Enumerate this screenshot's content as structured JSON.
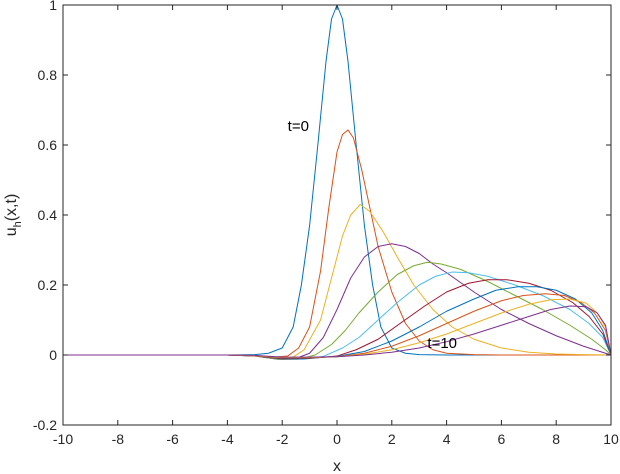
{
  "chart_data": {
    "type": "line",
    "xlabel": "x",
    "ylabel_base": "u",
    "ylabel_sub": "h",
    "ylabel_suffix": "(x,t)",
    "xlim": [
      -10,
      10
    ],
    "ylim": [
      -0.2,
      1
    ],
    "xticks": [
      -10,
      -8,
      -6,
      -4,
      -2,
      0,
      2,
      4,
      6,
      8,
      10
    ],
    "yticks": [
      -0.2,
      0,
      0.2,
      0.4,
      0.6,
      0.8,
      1
    ],
    "ytick_labels": [
      "-0.2",
      "0",
      "0.2",
      "0.4",
      "0.6",
      "0.8",
      "1"
    ],
    "grid": false,
    "box": true,
    "annotations": [
      {
        "text": "t=0",
        "x": -1.8,
        "y": 0.64
      },
      {
        "text": "t=10",
        "x": 3.3,
        "y": 0.02
      }
    ],
    "series": [
      {
        "color": "#0072BD",
        "points": [
          [
            -10,
            0
          ],
          [
            -4,
            0
          ],
          [
            -3,
            0.001
          ],
          [
            -2.5,
            0.005
          ],
          [
            -2,
            0.02
          ],
          [
            -1.6,
            0.08
          ],
          [
            -1.3,
            0.2
          ],
          [
            -1,
            0.37
          ],
          [
            -0.7,
            0.6
          ],
          [
            -0.4,
            0.84
          ],
          [
            -0.2,
            0.96
          ],
          [
            0,
            1
          ],
          [
            0.2,
            0.96
          ],
          [
            0.4,
            0.84
          ],
          [
            0.7,
            0.6
          ],
          [
            1,
            0.37
          ],
          [
            1.3,
            0.2
          ],
          [
            1.6,
            0.08
          ],
          [
            2,
            0.02
          ],
          [
            2.5,
            0.005
          ],
          [
            3,
            0.001
          ],
          [
            4,
            0
          ],
          [
            10,
            0
          ]
        ]
      },
      {
        "color": "#D95319",
        "points": [
          [
            -10,
            0
          ],
          [
            -4,
            0
          ],
          [
            -3,
            -0.002
          ],
          [
            -2.3,
            -0.006
          ],
          [
            -1.8,
            -0.003
          ],
          [
            -1.4,
            0.02
          ],
          [
            -1,
            0.08
          ],
          [
            -0.6,
            0.24
          ],
          [
            -0.3,
            0.42
          ],
          [
            0,
            0.58
          ],
          [
            0.2,
            0.63
          ],
          [
            0.4,
            0.643
          ],
          [
            0.6,
            0.62
          ],
          [
            0.9,
            0.53
          ],
          [
            1.2,
            0.42
          ],
          [
            1.5,
            0.31
          ],
          [
            2,
            0.18
          ],
          [
            2.5,
            0.09
          ],
          [
            3,
            0.04
          ],
          [
            3.5,
            0.015
          ],
          [
            4,
            0.005
          ],
          [
            5,
            0.001
          ],
          [
            6,
            0
          ],
          [
            10,
            0
          ]
        ]
      },
      {
        "color": "#EDB120",
        "points": [
          [
            -10,
            0
          ],
          [
            -4,
            0
          ],
          [
            -3,
            -0.003
          ],
          [
            -2.2,
            -0.01
          ],
          [
            -1.6,
            -0.006
          ],
          [
            -1.2,
            0.015
          ],
          [
            -0.6,
            0.1
          ],
          [
            -0.2,
            0.22
          ],
          [
            0.2,
            0.34
          ],
          [
            0.5,
            0.4
          ],
          [
            0.85,
            0.43
          ],
          [
            1.2,
            0.41
          ],
          [
            1.7,
            0.35
          ],
          [
            2.2,
            0.28
          ],
          [
            2.8,
            0.2
          ],
          [
            3.5,
            0.13
          ],
          [
            4.2,
            0.08
          ],
          [
            5,
            0.045
          ],
          [
            6,
            0.02
          ],
          [
            7,
            0.008
          ],
          [
            8,
            0.003
          ],
          [
            9,
            0.001
          ],
          [
            10,
            0
          ]
        ]
      },
      {
        "color": "#7E2F8E",
        "points": [
          [
            -10,
            0
          ],
          [
            -4,
            0
          ],
          [
            -3,
            -0.003
          ],
          [
            -2.1,
            -0.013
          ],
          [
            -1.5,
            -0.01
          ],
          [
            -1,
            0.005
          ],
          [
            -0.5,
            0.05
          ],
          [
            0,
            0.13
          ],
          [
            0.5,
            0.22
          ],
          [
            1,
            0.28
          ],
          [
            1.5,
            0.31
          ],
          [
            2,
            0.318
          ],
          [
            2.5,
            0.31
          ],
          [
            3,
            0.29
          ],
          [
            3.5,
            0.26
          ],
          [
            4,
            0.235
          ],
          [
            5,
            0.18
          ],
          [
            6,
            0.13
          ],
          [
            7,
            0.09
          ],
          [
            8,
            0.055
          ],
          [
            9,
            0.025
          ],
          [
            9.6,
            0.01
          ],
          [
            10,
            0
          ]
        ]
      },
      {
        "color": "#77AC30",
        "points": [
          [
            -10,
            0
          ],
          [
            -4,
            0
          ],
          [
            -3,
            -0.003
          ],
          [
            -2.1,
            -0.013
          ],
          [
            -1.4,
            -0.012
          ],
          [
            -0.8,
            0
          ],
          [
            -0.2,
            0.03
          ],
          [
            0.3,
            0.07
          ],
          [
            0.8,
            0.12
          ],
          [
            1.5,
            0.18
          ],
          [
            2.2,
            0.23
          ],
          [
            2.8,
            0.255
          ],
          [
            3.3,
            0.265
          ],
          [
            3.8,
            0.26
          ],
          [
            4.5,
            0.245
          ],
          [
            5.5,
            0.21
          ],
          [
            6.5,
            0.17
          ],
          [
            7.5,
            0.13
          ],
          [
            8.5,
            0.085
          ],
          [
            9.3,
            0.045
          ],
          [
            9.8,
            0.015
          ],
          [
            10,
            0
          ]
        ]
      },
      {
        "color": "#4DBEEE",
        "points": [
          [
            -10,
            0
          ],
          [
            -4,
            0
          ],
          [
            -3,
            -0.003
          ],
          [
            -2,
            -0.012
          ],
          [
            -1.2,
            -0.012
          ],
          [
            -0.5,
            -0.004
          ],
          [
            0.2,
            0.02
          ],
          [
            0.8,
            0.05
          ],
          [
            1.5,
            0.1
          ],
          [
            2.2,
            0.15
          ],
          [
            3,
            0.2
          ],
          [
            3.6,
            0.225
          ],
          [
            4.2,
            0.237
          ],
          [
            4.8,
            0.235
          ],
          [
            5.5,
            0.225
          ],
          [
            6.5,
            0.2
          ],
          [
            7.5,
            0.17
          ],
          [
            8.5,
            0.13
          ],
          [
            9.2,
            0.09
          ],
          [
            9.7,
            0.05
          ],
          [
            10,
            0
          ]
        ]
      },
      {
        "color": "#A2142F",
        "points": [
          [
            -10,
            0
          ],
          [
            -4,
            0
          ],
          [
            -3,
            -0.003
          ],
          [
            -2,
            -0.011
          ],
          [
            -1,
            -0.01
          ],
          [
            0,
            -0.003
          ],
          [
            0.7,
            0.015
          ],
          [
            1.5,
            0.045
          ],
          [
            2.3,
            0.09
          ],
          [
            3.2,
            0.14
          ],
          [
            4,
            0.18
          ],
          [
            4.8,
            0.205
          ],
          [
            5.5,
            0.215
          ],
          [
            6.2,
            0.215
          ],
          [
            7,
            0.205
          ],
          [
            7.8,
            0.185
          ],
          [
            8.6,
            0.15
          ],
          [
            9.2,
            0.11
          ],
          [
            9.7,
            0.06
          ],
          [
            10,
            0
          ]
        ]
      },
      {
        "color": "#0072BD",
        "points": [
          [
            -10,
            0
          ],
          [
            -4,
            0
          ],
          [
            -3,
            -0.002
          ],
          [
            -2,
            -0.009
          ],
          [
            -1,
            -0.009
          ],
          [
            0,
            -0.004
          ],
          [
            1,
            0.01
          ],
          [
            2,
            0.04
          ],
          [
            3,
            0.08
          ],
          [
            4,
            0.125
          ],
          [
            5,
            0.16
          ],
          [
            5.8,
            0.185
          ],
          [
            6.6,
            0.195
          ],
          [
            7.3,
            0.195
          ],
          [
            8,
            0.185
          ],
          [
            8.7,
            0.16
          ],
          [
            9.3,
            0.12
          ],
          [
            9.7,
            0.07
          ],
          [
            10,
            0
          ]
        ]
      },
      {
        "color": "#D95319",
        "points": [
          [
            -10,
            0
          ],
          [
            -4,
            0
          ],
          [
            -3,
            -0.002
          ],
          [
            -2,
            -0.008
          ],
          [
            -1,
            -0.008
          ],
          [
            0,
            -0.005
          ],
          [
            1,
            0.005
          ],
          [
            2,
            0.025
          ],
          [
            3,
            0.055
          ],
          [
            4,
            0.09
          ],
          [
            5,
            0.125
          ],
          [
            6,
            0.155
          ],
          [
            6.8,
            0.17
          ],
          [
            7.6,
            0.175
          ],
          [
            8.3,
            0.17
          ],
          [
            8.9,
            0.15
          ],
          [
            9.4,
            0.12
          ],
          [
            9.8,
            0.07
          ],
          [
            10,
            0
          ]
        ]
      },
      {
        "color": "#EDB120",
        "points": [
          [
            -10,
            0
          ],
          [
            -4,
            0
          ],
          [
            -3,
            -0.002
          ],
          [
            -2,
            -0.007
          ],
          [
            -1,
            -0.007
          ],
          [
            0,
            -0.005
          ],
          [
            1,
            0.002
          ],
          [
            2,
            0.015
          ],
          [
            3,
            0.035
          ],
          [
            4,
            0.06
          ],
          [
            5,
            0.09
          ],
          [
            6,
            0.12
          ],
          [
            7,
            0.145
          ],
          [
            7.8,
            0.158
          ],
          [
            8.5,
            0.16
          ],
          [
            9.1,
            0.148
          ],
          [
            9.5,
            0.12
          ],
          [
            9.8,
            0.08
          ],
          [
            10,
            0
          ]
        ]
      },
      {
        "color": "#7E2F8E",
        "points": [
          [
            -10,
            0
          ],
          [
            -4,
            0
          ],
          [
            -3,
            -0.001
          ],
          [
            -2,
            -0.006
          ],
          [
            -1,
            -0.006
          ],
          [
            0,
            -0.005
          ],
          [
            1,
            0
          ],
          [
            2,
            0.008
          ],
          [
            3,
            0.02
          ],
          [
            4,
            0.038
          ],
          [
            5,
            0.06
          ],
          [
            6,
            0.085
          ],
          [
            7,
            0.11
          ],
          [
            7.8,
            0.13
          ],
          [
            8.5,
            0.14
          ],
          [
            9.1,
            0.138
          ],
          [
            9.5,
            0.12
          ],
          [
            9.8,
            0.085
          ],
          [
            10,
            0
          ]
        ]
      }
    ]
  }
}
